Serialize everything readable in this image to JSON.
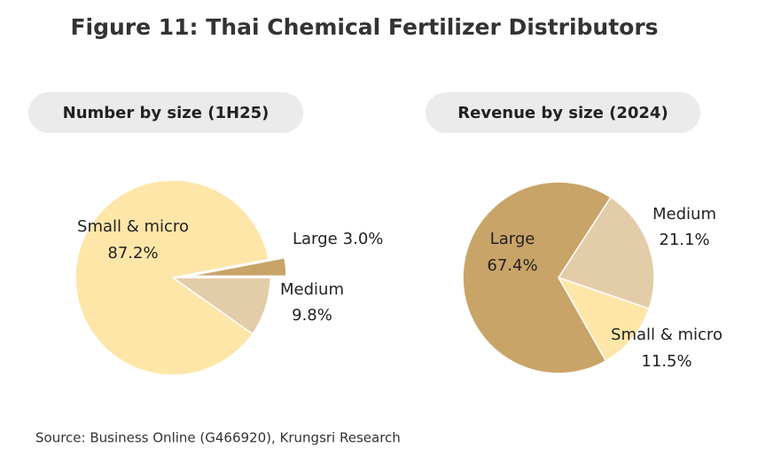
{
  "title": "Figure 11: Thai Chemical Fertilizer Distributors",
  "source": "Source: Business Online (G466920),  Krungsri  Research",
  "chart_data": [
    {
      "type": "pie",
      "title": "Number by size  (1H25)",
      "categories": [
        "Medium",
        "Small & micro",
        "Large"
      ],
      "values": [
        9.8,
        87.2,
        3.0
      ],
      "value_labels": [
        "9.8%",
        "87.2%",
        "3.0%"
      ],
      "colors": [
        "#e3cca8",
        "#fee6a9",
        "#c9a468"
      ]
    },
    {
      "type": "pie",
      "title": "Revenue by size (2024)",
      "categories": [
        "Medium",
        "Small & micro",
        "Large"
      ],
      "values": [
        21.1,
        11.5,
        67.4
      ],
      "value_labels": [
        "21.1%",
        "11.5%",
        "67.4%"
      ],
      "colors": [
        "#e3cca8",
        "#fee6a9",
        "#c9a468"
      ]
    }
  ]
}
